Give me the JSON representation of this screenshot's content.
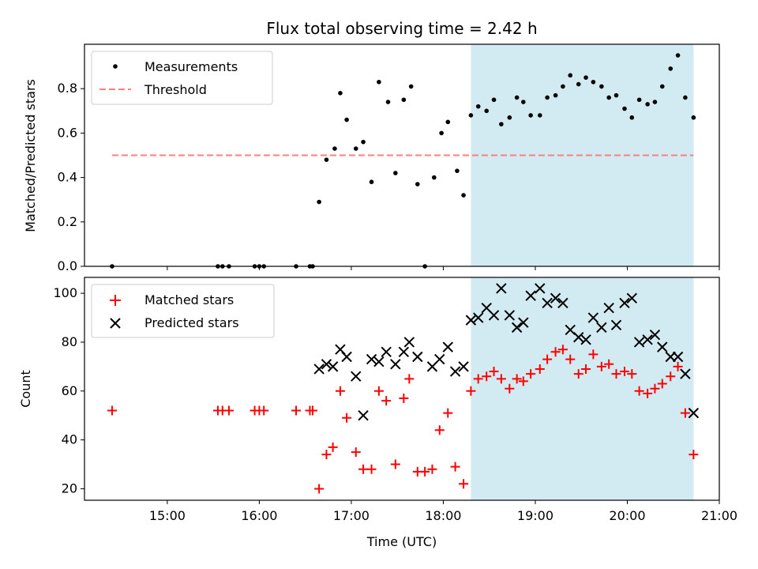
{
  "title": "Flux total observing time = 2.42 h",
  "colors": {
    "measurement": "#000000",
    "threshold": "#ff7f7f",
    "matched": "#ff0000",
    "predicted": "#000000",
    "shade": "#add8e6"
  },
  "chart_data": [
    {
      "type": "scatter",
      "ylabel": "Matched/Predicted stars",
      "xlim": [
        14.1,
        21.0
      ],
      "ylim": [
        0,
        1.0
      ],
      "yticks": [
        0.0,
        0.2,
        0.4,
        0.6,
        0.8
      ],
      "ytick_labels": [
        "0.0",
        "0.2",
        "0.4",
        "0.6",
        "0.8"
      ],
      "legend": {
        "placement": "upper-left",
        "entries": [
          "Measurements",
          "Threshold"
        ]
      },
      "threshold": {
        "name": "Threshold",
        "value": 0.5,
        "x": [
          14.4,
          20.72
        ]
      },
      "shaded_x": [
        18.3,
        20.72
      ],
      "series": [
        {
          "name": "Measurements",
          "x": [
            14.4,
            15.55,
            15.6,
            15.67,
            15.95,
            16.0,
            16.05,
            16.4,
            16.55,
            16.58,
            16.65,
            16.73,
            16.82,
            16.88,
            16.95,
            17.05,
            17.13,
            17.22,
            17.3,
            17.4,
            17.48,
            17.57,
            17.65,
            17.72,
            17.8,
            17.9,
            17.98,
            18.05,
            18.15,
            18.22,
            18.3,
            18.38,
            18.47,
            18.55,
            18.63,
            18.72,
            18.8,
            18.87,
            18.95,
            19.05,
            19.13,
            19.22,
            19.3,
            19.38,
            19.47,
            19.55,
            19.63,
            19.72,
            19.8,
            19.88,
            19.97,
            20.05,
            20.13,
            20.22,
            20.3,
            20.38,
            20.47,
            20.55,
            20.63,
            20.72
          ],
          "y": [
            0.0,
            0.0,
            0.0,
            0.0,
            0.0,
            0.0,
            0.0,
            0.0,
            0.0,
            0.0,
            0.29,
            0.48,
            0.53,
            0.78,
            0.66,
            0.53,
            0.56,
            0.38,
            0.83,
            0.74,
            0.42,
            0.75,
            0.81,
            0.37,
            0.0,
            0.4,
            0.6,
            0.65,
            0.43,
            0.32,
            0.68,
            0.72,
            0.7,
            0.75,
            0.64,
            0.67,
            0.76,
            0.74,
            0.68,
            0.68,
            0.76,
            0.77,
            0.81,
            0.86,
            0.82,
            0.85,
            0.83,
            0.81,
            0.76,
            0.77,
            0.71,
            0.67,
            0.75,
            0.73,
            0.74,
            0.81,
            0.89,
            0.95,
            0.76,
            0.67
          ]
        }
      ]
    },
    {
      "type": "scatter",
      "xlabel": "Time (UTC)",
      "ylabel": "Count",
      "xlim": [
        14.1,
        21.0
      ],
      "ylim": [
        15.3,
        106.5
      ],
      "xticks": [
        15,
        16,
        17,
        18,
        19,
        20,
        21
      ],
      "xtick_labels": [
        "15:00",
        "16:00",
        "17:00",
        "18:00",
        "19:00",
        "20:00",
        "21:00"
      ],
      "yticks": [
        20,
        40,
        60,
        80,
        100
      ],
      "ytick_labels": [
        "20",
        "40",
        "60",
        "80",
        "100"
      ],
      "legend": {
        "placement": "upper-left",
        "entries": [
          "Matched stars",
          "Predicted stars"
        ]
      },
      "shaded_x": [
        18.3,
        20.72
      ],
      "series": [
        {
          "name": "Matched stars",
          "x": [
            14.4,
            15.55,
            15.6,
            15.67,
            15.95,
            16.0,
            16.05,
            16.4,
            16.55,
            16.58,
            16.65,
            16.73,
            16.8,
            16.88,
            16.95,
            17.05,
            17.13,
            17.22,
            17.3,
            17.38,
            17.48,
            17.57,
            17.63,
            17.72,
            17.8,
            17.88,
            17.96,
            18.05,
            18.13,
            18.22,
            18.3,
            18.38,
            18.47,
            18.55,
            18.63,
            18.72,
            18.8,
            18.87,
            18.95,
            19.05,
            19.13,
            19.22,
            19.3,
            19.38,
            19.47,
            19.55,
            19.63,
            19.72,
            19.8,
            19.88,
            19.97,
            20.05,
            20.13,
            20.22,
            20.3,
            20.38,
            20.47,
            20.55,
            20.63,
            20.72
          ],
          "y": [
            52,
            52,
            52,
            52,
            52,
            52,
            52,
            52,
            52,
            52,
            20,
            34,
            37,
            60,
            49,
            35,
            28,
            28,
            60,
            56,
            30,
            57,
            65,
            27,
            27,
            28,
            44,
            51,
            29,
            22,
            60,
            65,
            66,
            68,
            65,
            61,
            65,
            64,
            67,
            69,
            73,
            76,
            77,
            73,
            67,
            69,
            75,
            70,
            71,
            67,
            68,
            67,
            60,
            59,
            61,
            63,
            66,
            70,
            51,
            34
          ]
        },
        {
          "name": "Predicted stars",
          "x": [
            16.65,
            16.73,
            16.8,
            16.88,
            16.95,
            17.05,
            17.13,
            17.22,
            17.3,
            17.38,
            17.48,
            17.57,
            17.63,
            17.72,
            17.88,
            17.96,
            18.05,
            18.13,
            18.22,
            18.3,
            18.38,
            18.47,
            18.55,
            18.63,
            18.72,
            18.8,
            18.87,
            18.95,
            19.05,
            19.13,
            19.22,
            19.3,
            19.38,
            19.47,
            19.55,
            19.63,
            19.72,
            19.8,
            19.88,
            19.97,
            20.05,
            20.13,
            20.22,
            20.3,
            20.38,
            20.47,
            20.55,
            20.63,
            20.72
          ],
          "y": [
            69,
            71,
            70,
            77,
            74,
            66,
            50,
            73,
            72,
            76,
            71,
            76,
            80,
            74,
            70,
            73,
            78,
            68,
            70,
            89,
            90,
            94,
            91,
            102,
            91,
            86,
            88,
            99,
            102,
            96,
            98,
            96,
            85,
            82,
            81,
            90,
            86,
            94,
            87,
            96,
            98,
            80,
            81,
            83,
            78,
            74,
            74,
            67,
            51
          ]
        }
      ]
    }
  ]
}
